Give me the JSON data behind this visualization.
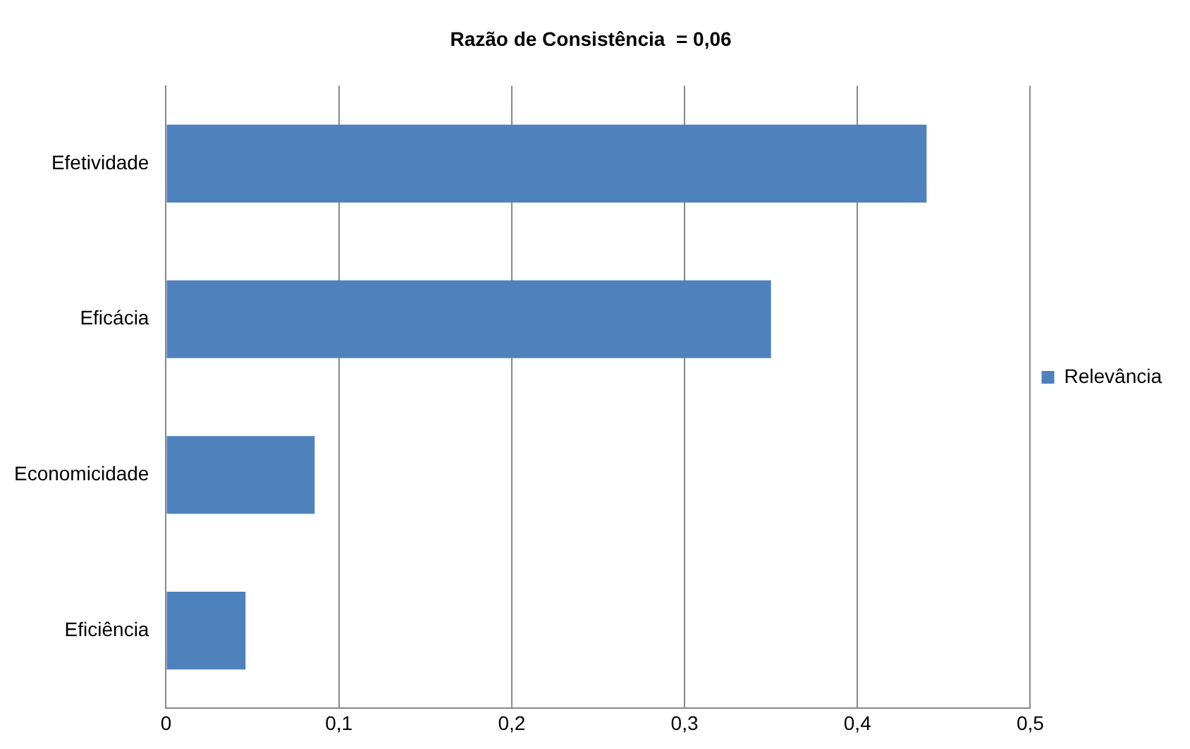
{
  "chart_data": {
    "type": "bar",
    "orientation": "horizontal",
    "title": "Razão de Consistência  = 0,06",
    "categories": [
      "Efetividade",
      "Eficácia",
      "Economicidade",
      "Eficiência"
    ],
    "series": [
      {
        "name": "Relevância",
        "color": "#4f81bd",
        "values": [
          0.44,
          0.35,
          0.086,
          0.046
        ]
      }
    ],
    "xlim": [
      0,
      0.5
    ],
    "xticks": [
      {
        "value": 0,
        "label": "0"
      },
      {
        "value": 0.1,
        "label": "0,1"
      },
      {
        "value": 0.2,
        "label": "0,2"
      },
      {
        "value": 0.3,
        "label": "0,3"
      },
      {
        "value": 0.4,
        "label": "0,4"
      },
      {
        "value": 0.5,
        "label": "0,5"
      }
    ],
    "grid": "x",
    "legend": "right"
  }
}
